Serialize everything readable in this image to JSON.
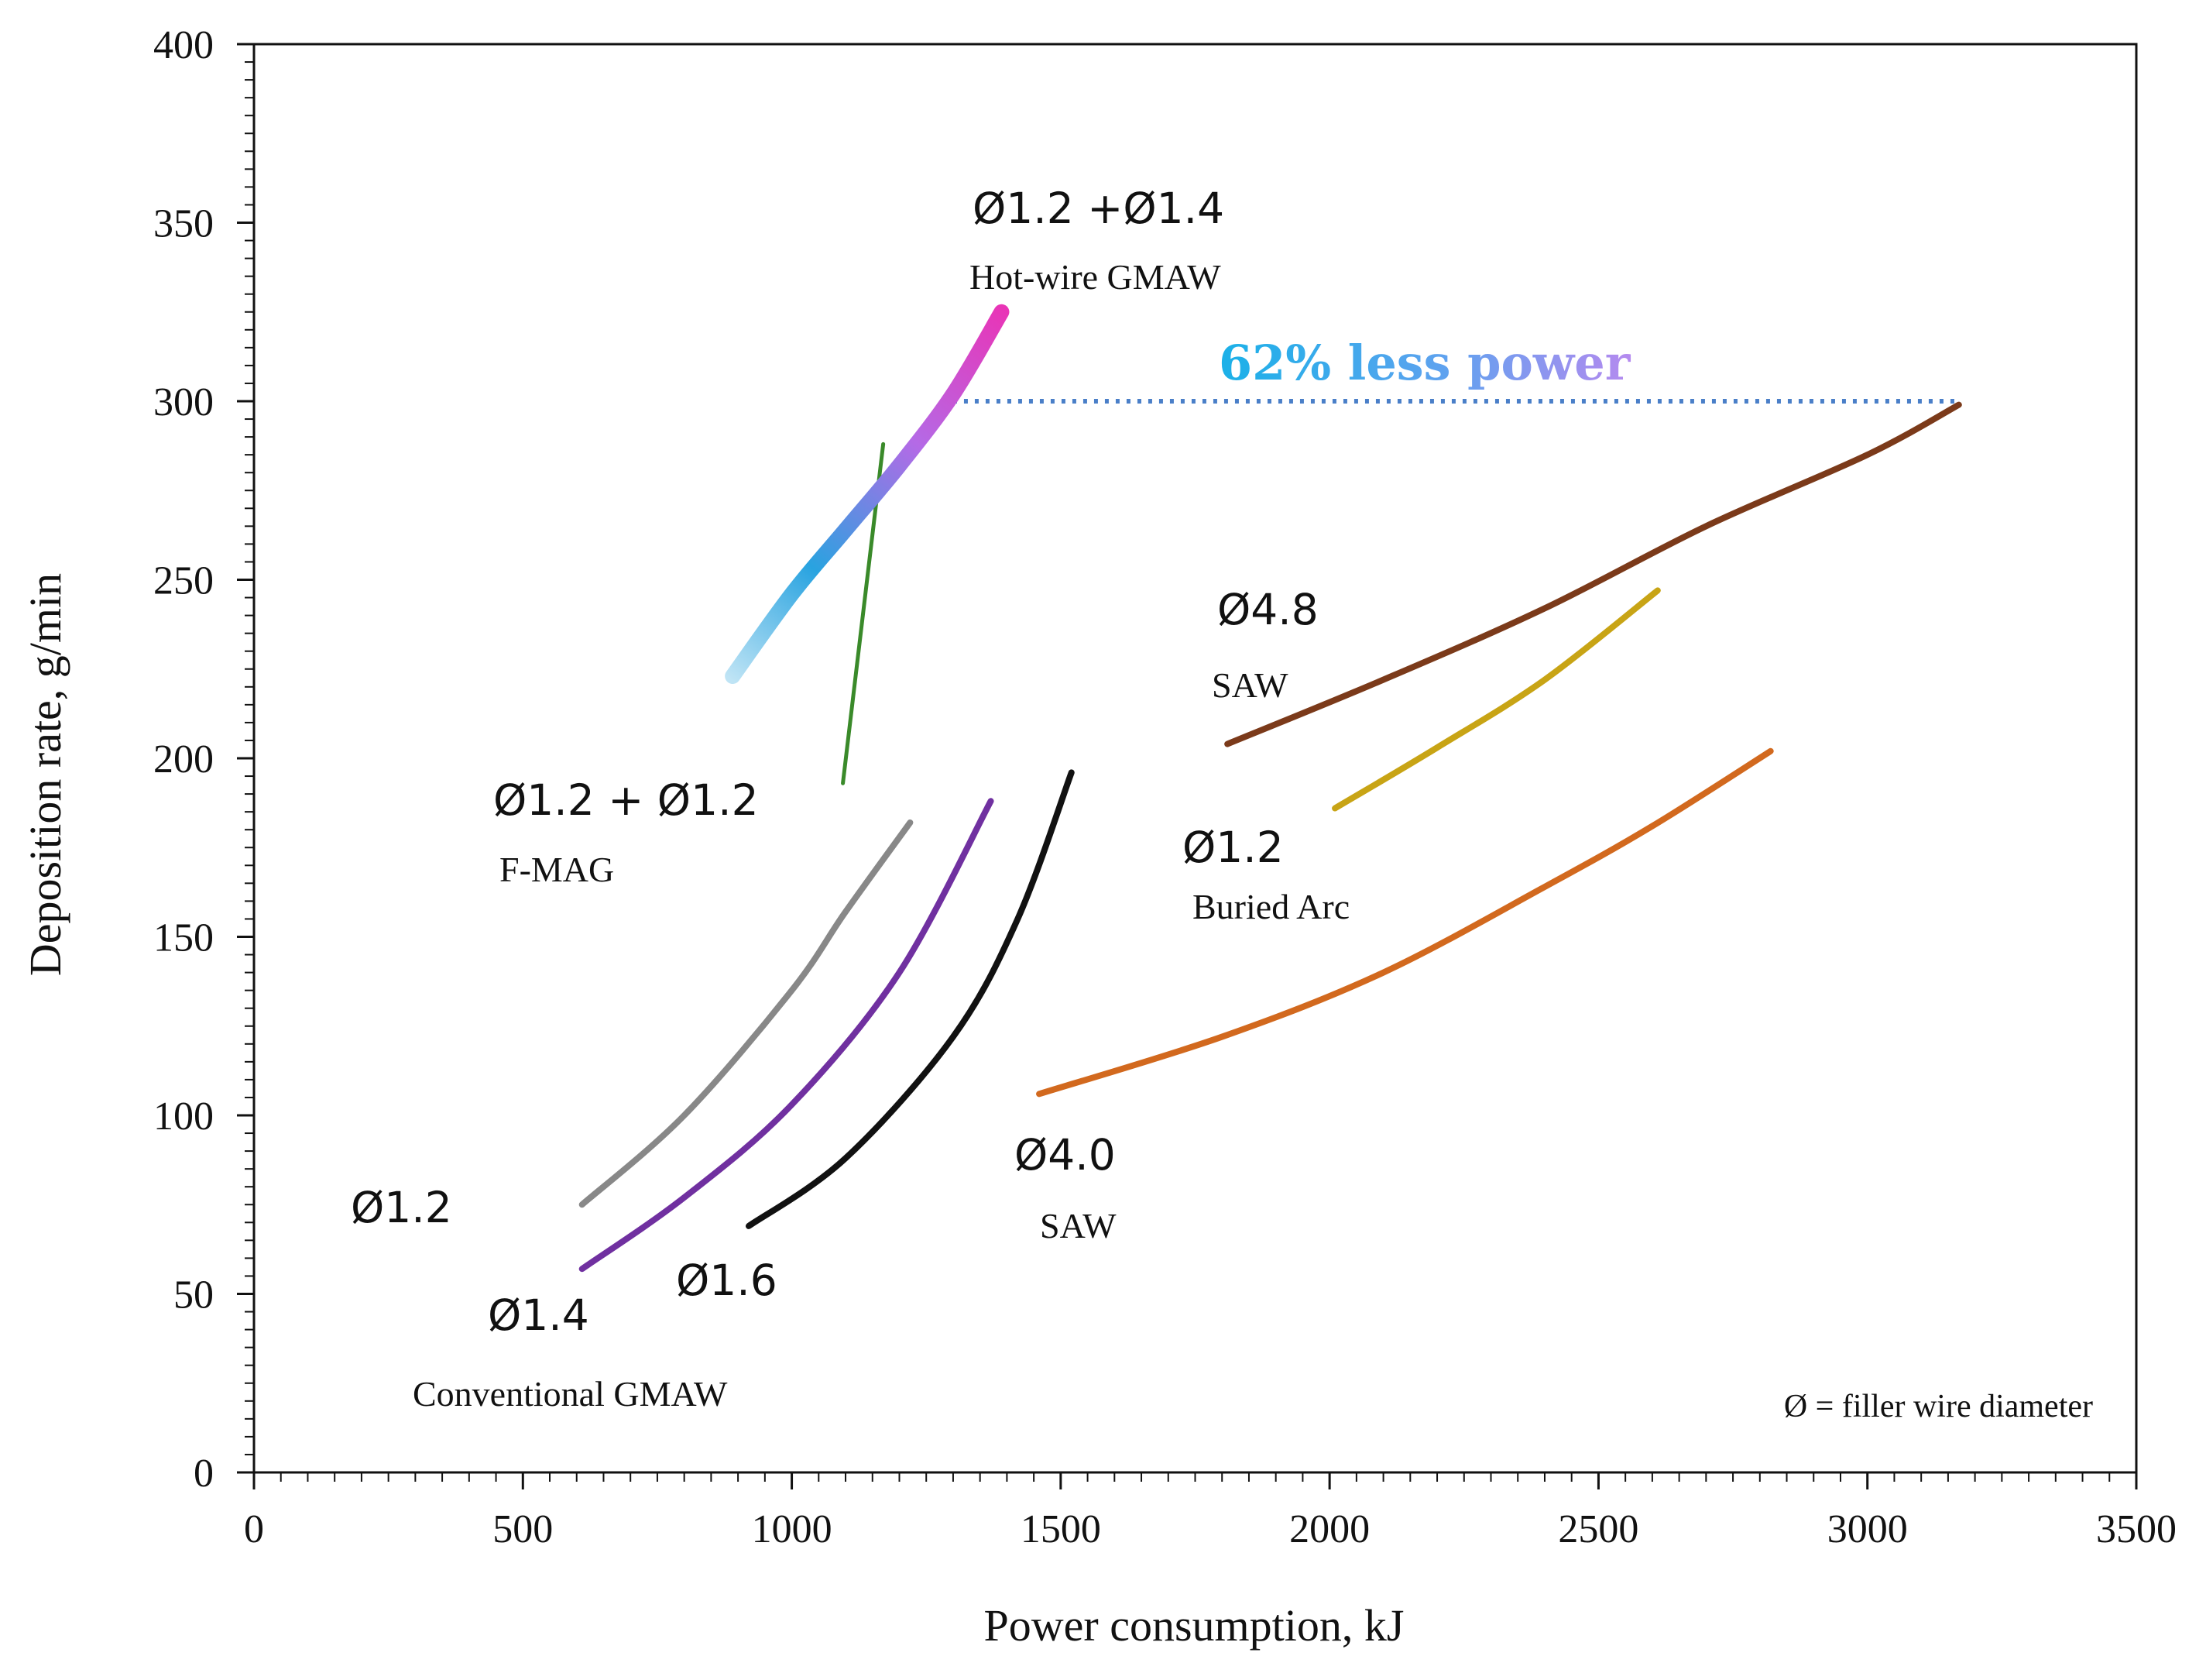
{
  "chart_data": {
    "type": "line",
    "title": "",
    "xlabel": "Power consumption, kJ",
    "ylabel": "Deposition rate, g/min",
    "xlim": [
      0,
      3500
    ],
    "ylim": [
      0,
      400
    ],
    "xticks": [
      0,
      500,
      1000,
      1500,
      2000,
      2500,
      3000,
      3500
    ],
    "yticks": [
      0,
      50,
      100,
      150,
      200,
      250,
      300,
      350,
      400
    ],
    "grid": false,
    "series": [
      {
        "name": "Conventional GMAW Ø1.2",
        "color": "#888888",
        "x": [
          610,
          800,
          1000,
          1100,
          1220
        ],
        "y": [
          75,
          100,
          135,
          157,
          182
        ]
      },
      {
        "name": "Conventional GMAW Ø1.4",
        "color": "#7030A0",
        "x": [
          610,
          800,
          1000,
          1200,
          1370
        ],
        "y": [
          57,
          77,
          103,
          140,
          188
        ]
      },
      {
        "name": "Conventional GMAW Ø1.6",
        "color": "#111111",
        "x": [
          920,
          1100,
          1300,
          1420,
          1520
        ],
        "y": [
          69,
          88,
          122,
          155,
          196
        ]
      },
      {
        "name": "F-MAG Ø1.2 + Ø1.2",
        "color": "#3a8a2a",
        "x": [
          1095,
          1170
        ],
        "y": [
          193,
          288
        ]
      },
      {
        "name": "Hot-wire GMAW Ø1.2 + Ø1.4",
        "color": "gradient",
        "x": [
          890,
          1000,
          1100,
          1200,
          1300,
          1390
        ],
        "y": [
          223,
          246,
          264,
          282,
          302,
          325
        ]
      },
      {
        "name": "SAW Ø4.0",
        "color": "#D2691E",
        "x": [
          1460,
          1800,
          2100,
          2400,
          2600,
          2820
        ],
        "y": [
          106,
          122,
          140,
          164,
          181,
          202
        ]
      },
      {
        "name": "SAW Ø4.8",
        "color": "#7B3A1A",
        "x": [
          1810,
          2100,
          2400,
          2700,
          3000,
          3170
        ],
        "y": [
          204,
          222,
          242,
          265,
          285,
          299
        ]
      },
      {
        "name": "Buried Arc Ø1.2",
        "color": "#C8A415",
        "x": [
          2010,
          2200,
          2400,
          2610
        ],
        "y": [
          186,
          203,
          222,
          247
        ]
      }
    ],
    "reference_line": {
      "y": 300,
      "x_start": 1300,
      "x_end": 3170,
      "color": "#4a7fc8",
      "style": "dotted"
    },
    "annotations": [
      {
        "id": "hotwire-dia",
        "text": "Ø1.2 +Ø1.4"
      },
      {
        "id": "hotwire-name",
        "text": "Hot-wire GMAW"
      },
      {
        "id": "less-power",
        "text": "62% less power"
      },
      {
        "id": "saw48-dia",
        "text": "Ø4.8"
      },
      {
        "id": "saw48-name",
        "text": "SAW"
      },
      {
        "id": "fmag-dia",
        "text": "Ø1.2 + Ø1.2"
      },
      {
        "id": "fmag-name",
        "text": "F-MAG"
      },
      {
        "id": "buried-dia",
        "text": "Ø1.2"
      },
      {
        "id": "buried-name",
        "text": "Buried Arc"
      },
      {
        "id": "conv12-dia",
        "text": "Ø1.2"
      },
      {
        "id": "saw40-dia",
        "text": "Ø4.0"
      },
      {
        "id": "saw40-name",
        "text": "SAW"
      },
      {
        "id": "conv16-dia",
        "text": "Ø1.6"
      },
      {
        "id": "conv14-dia",
        "text": "Ø1.4"
      },
      {
        "id": "conv-name",
        "text": "Conventional GMAW"
      },
      {
        "id": "legend-note",
        "text": "Ø = filler wire diameter"
      }
    ]
  }
}
